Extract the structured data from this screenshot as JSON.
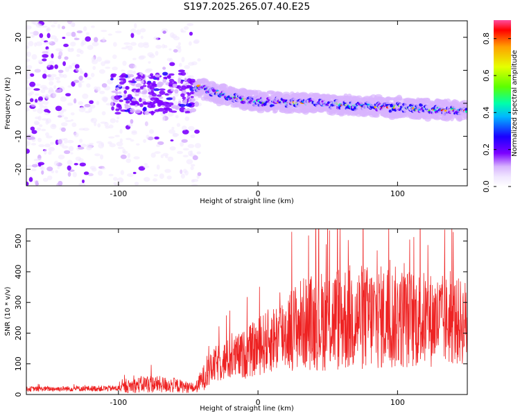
{
  "title": "S197.2025.265.07.40.E25",
  "chart_data": [
    {
      "type": "heatmap",
      "name": "spectrogram",
      "xlabel": "Height of straight line (km)",
      "ylabel": "Frequency (Hz)",
      "xlim": [
        -166,
        150
      ],
      "ylim": [
        -25,
        25
      ],
      "xticks": [
        -100,
        0,
        100
      ],
      "yticks": [
        -20,
        -10,
        0,
        10,
        20
      ],
      "colorbar": {
        "label": "Normalized spectral amplitude",
        "range": [
          0.0,
          0.9
        ],
        "ticks": [
          0.0,
          0.2,
          0.4,
          0.6,
          0.8
        ],
        "colors": [
          "#ffffff",
          "#f0e6ff",
          "#d8b4fe",
          "#7c00ff",
          "#1a00ff",
          "#00b7ff",
          "#00ffaa",
          "#5dff00",
          "#e6ff00",
          "#ffa000",
          "#ff0000",
          "#ff4d9e"
        ]
      },
      "ridge": [
        {
          "x": -42,
          "f": 5.0
        },
        {
          "x": -30,
          "f": 3.0
        },
        {
          "x": -20,
          "f": 2.0
        },
        {
          "x": -10,
          "f": 1.2
        },
        {
          "x": 0,
          "f": 0.5
        },
        {
          "x": 20,
          "f": 0.3
        },
        {
          "x": 40,
          "f": 0.2
        },
        {
          "x": 60,
          "f": -0.6
        },
        {
          "x": 80,
          "f": -0.8
        },
        {
          "x": 100,
          "f": -1.3
        },
        {
          "x": 120,
          "f": -1.8
        },
        {
          "x": 150,
          "f": -2.0
        }
      ]
    },
    {
      "type": "line",
      "name": "snr",
      "xlabel": "Height of straight line (km)",
      "ylabel": "SNR (10 * v/v)",
      "xlim": [
        -166,
        150
      ],
      "ylim": [
        0,
        540
      ],
      "xticks": [
        -100,
        0,
        100
      ],
      "yticks": [
        0,
        100,
        200,
        300,
        400,
        500
      ],
      "color": "#ee2222",
      "envelope": [
        {
          "x": -166,
          "base": 18,
          "amp": 8
        },
        {
          "x": -100,
          "base": 20,
          "amp": 10
        },
        {
          "x": -95,
          "base": 25,
          "amp": 20
        },
        {
          "x": -80,
          "base": 35,
          "amp": 30
        },
        {
          "x": -60,
          "base": 30,
          "amp": 25
        },
        {
          "x": -45,
          "base": 20,
          "amp": 15
        },
        {
          "x": -40,
          "base": 50,
          "amp": 40
        },
        {
          "x": -30,
          "base": 100,
          "amp": 60
        },
        {
          "x": -10,
          "base": 130,
          "amp": 80
        },
        {
          "x": 10,
          "base": 180,
          "amp": 110
        },
        {
          "x": 30,
          "base": 230,
          "amp": 150
        },
        {
          "x": 60,
          "base": 250,
          "amp": 180
        },
        {
          "x": 100,
          "base": 250,
          "amp": 170
        },
        {
          "x": 150,
          "base": 235,
          "amp": 140
        }
      ]
    }
  ]
}
